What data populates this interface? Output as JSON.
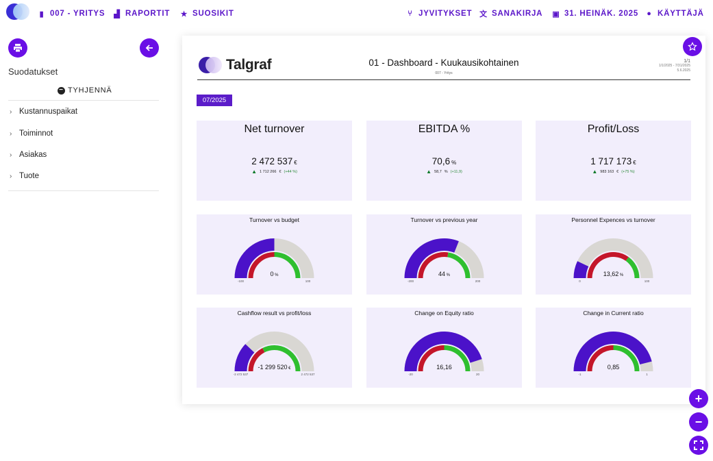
{
  "nav": {
    "company": "007 - YRITYS",
    "reports": "RAPORTIT",
    "favorites": "SUOSIKIT",
    "allocations": "JYVITYKSET",
    "dictionary": "SANAKIRJA",
    "date": "31. HEINÄK. 2025",
    "user": "KÄYTTÄJÄ"
  },
  "sidebar": {
    "title": "Suodatukset",
    "clear_label": "TYHJENNÄ",
    "filters": [
      "Kustannuspaikat",
      "Toiminnot",
      "Asiakas",
      "Tuote"
    ]
  },
  "report": {
    "brand": "Talgraf",
    "title": "01 - Dashboard - Kuukausikohtainen",
    "subtitle": "007 - Yritys",
    "page": "1/1",
    "range": "1/1/2025 - 7/31/2025",
    "printed": "5.6.2025",
    "period": "07/2025",
    "kpis": [
      {
        "title": "Net turnover",
        "value": "2 472 537",
        "unit": "€",
        "prev": "1 712 266",
        "prev_unit": "€",
        "change": "(+44 %)"
      },
      {
        "title": "EBITDA %",
        "value": "70,6",
        "unit": "%",
        "prev": "58,7",
        "prev_unit": "%",
        "change": "(+11,9)"
      },
      {
        "title": "Profit/Loss",
        "value": "1 717 173",
        "unit": "€",
        "prev": "983 163",
        "prev_unit": "€",
        "change": "(+75 %)"
      }
    ],
    "gauges": [
      {
        "title": "Turnover vs budget",
        "value": "0",
        "unit": "%",
        "min": "-100",
        "max": "100",
        "outer_fraction": 0.5,
        "inner_fraction": 0.5
      },
      {
        "title": "Turnover vs previous year",
        "value": "44",
        "unit": "%",
        "min": "-200",
        "max": "200",
        "outer_fraction": 0.62,
        "inner_fraction": 0.55
      },
      {
        "title": "Personnel Expences vs turnover",
        "value": "13,62",
        "unit": "%",
        "min": "0",
        "max": "100",
        "outer_fraction": 0.14,
        "inner_fraction": 0.7
      },
      {
        "title": "Cashflow result vs profit/loss",
        "value": "-1 299 520",
        "unit": "€",
        "min": "-2 472 537",
        "max": "2 472 537",
        "outer_fraction": 0.24,
        "inner_fraction": 0.35
      },
      {
        "title": "Change on Equity ratio",
        "value": "16,16",
        "unit": "",
        "min": "-20",
        "max": "20",
        "outer_fraction": 0.9,
        "inner_fraction": 0.5
      },
      {
        "title": "Change in Current ratio",
        "value": "0,85",
        "unit": "",
        "min": "-1",
        "max": "1",
        "outer_fraction": 0.92,
        "inner_fraction": 0.5
      }
    ]
  },
  "colors": {
    "accent": "#6a0fe6",
    "outer": "#4b12c9",
    "track": "#d9d7d3",
    "positive": "#2fbf2f",
    "negative": "#c4162a",
    "card": "#f2eefc"
  }
}
